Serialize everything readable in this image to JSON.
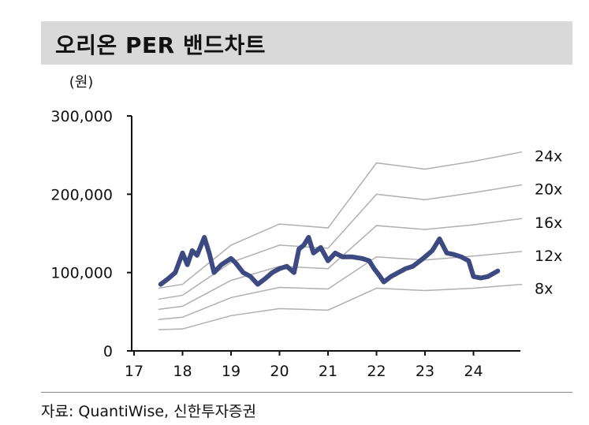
{
  "title": "오리온 PER 밴드차트",
  "source": "자료: QuantiWise, 신한투자증권",
  "chart_data": {
    "type": "line",
    "unit": "(원)",
    "ylim": [
      0,
      300000
    ],
    "xlim": [
      17,
      25
    ],
    "y_ticks": [
      {
        "value": 0,
        "label": "0"
      },
      {
        "value": 100000,
        "label": "100,000"
      },
      {
        "value": 200000,
        "label": "200,000"
      },
      {
        "value": 300000,
        "label": "300,000"
      }
    ],
    "x_ticks": [
      {
        "value": 17,
        "label": "17"
      },
      {
        "value": 18,
        "label": "18"
      },
      {
        "value": 19,
        "label": "19"
      },
      {
        "value": 20,
        "label": "20"
      },
      {
        "value": 21,
        "label": "21"
      },
      {
        "value": 22,
        "label": "22"
      },
      {
        "value": 23,
        "label": "23"
      },
      {
        "value": 24,
        "label": "24"
      }
    ],
    "band_x": [
      17.5,
      18.0,
      19.0,
      20.0,
      21.0,
      22.0,
      23.0,
      24.0,
      25.0
    ],
    "series": [
      {
        "name": "24x",
        "color": "#b0b0b0",
        "values": [
          80000,
          85000,
          135000,
          162000,
          157000,
          240000,
          232000,
          242000,
          254000
        ]
      },
      {
        "name": "20x",
        "color": "#b0b0b0",
        "values": [
          66000,
          71000,
          113000,
          135000,
          131000,
          200000,
          193000,
          202000,
          212000
        ]
      },
      {
        "name": "16x",
        "color": "#b0b0b0",
        "values": [
          53000,
          57000,
          90000,
          108000,
          105000,
          160000,
          155000,
          161000,
          169000
        ]
      },
      {
        "name": "12x",
        "color": "#b0b0b0",
        "values": [
          40000,
          43000,
          68000,
          81000,
          79000,
          120000,
          116000,
          121000,
          127000
        ]
      },
      {
        "name": "8x",
        "color": "#b0b0b0",
        "values": [
          27000,
          28000,
          45000,
          54000,
          52000,
          80000,
          77000,
          80000,
          85000
        ]
      }
    ],
    "price": {
      "color": "#3d4a82",
      "x": [
        17.55,
        17.7,
        17.85,
        18.0,
        18.1,
        18.2,
        18.3,
        18.45,
        18.55,
        18.65,
        18.8,
        19.0,
        19.1,
        19.25,
        19.4,
        19.55,
        19.7,
        19.85,
        20.0,
        20.15,
        20.3,
        20.4,
        20.5,
        20.6,
        20.7,
        20.85,
        21.0,
        21.15,
        21.3,
        21.5,
        21.7,
        21.85,
        21.95,
        22.05,
        22.15,
        22.3,
        22.45,
        22.6,
        22.75,
        22.9,
        23.0,
        23.15,
        23.3,
        23.45,
        23.6,
        23.75,
        23.9,
        24.0,
        24.15,
        24.3,
        24.5
      ],
      "values": [
        85000,
        92000,
        100000,
        125000,
        110000,
        128000,
        122000,
        145000,
        125000,
        100000,
        110000,
        118000,
        112000,
        100000,
        95000,
        85000,
        92000,
        100000,
        105000,
        108000,
        100000,
        130000,
        135000,
        145000,
        125000,
        132000,
        115000,
        125000,
        120000,
        120000,
        118000,
        115000,
        105000,
        97000,
        88000,
        95000,
        100000,
        105000,
        108000,
        115000,
        120000,
        128000,
        143000,
        125000,
        123000,
        120000,
        115000,
        95000,
        93000,
        95000,
        102000
      ]
    }
  }
}
